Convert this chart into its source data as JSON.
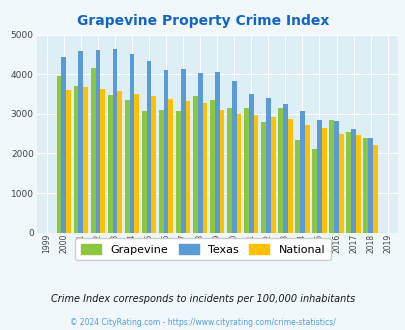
{
  "title": "Grapevine Property Crime Index",
  "years": [
    "1999",
    "2000",
    "2001",
    "2002",
    "2003",
    "2004",
    "2005",
    "2006",
    "2007",
    "2008",
    "2009",
    "2010",
    "2011",
    "2012",
    "2013",
    "2014",
    "2015",
    "2016",
    "2017",
    "2018",
    "2019"
  ],
  "grapevine": [
    null,
    3950,
    3700,
    4150,
    3480,
    3360,
    3060,
    3100,
    3060,
    3460,
    3350,
    3150,
    3150,
    2800,
    3160,
    2350,
    2100,
    2850,
    2550,
    2380,
    null
  ],
  "texas": [
    null,
    4430,
    4590,
    4620,
    4640,
    4520,
    4330,
    4100,
    4120,
    4030,
    4060,
    3820,
    3490,
    3390,
    3260,
    3060,
    2840,
    2820,
    2610,
    2400,
    null
  ],
  "national": [
    null,
    3610,
    3680,
    3640,
    3570,
    3510,
    3450,
    3380,
    3330,
    3280,
    3090,
    2990,
    2960,
    2920,
    2880,
    2730,
    2650,
    2490,
    2470,
    2220,
    null
  ],
  "colors": {
    "grapevine": "#8dc63f",
    "texas": "#5b9bd5",
    "national": "#ffc000"
  },
  "background_color": "#f0f8fc",
  "plot_bg": "#ddeef5",
  "ylim": [
    0,
    5000
  ],
  "yticks": [
    0,
    1000,
    2000,
    3000,
    4000,
    5000
  ],
  "subtitle": "Crime Index corresponds to incidents per 100,000 inhabitants",
  "footer": "© 2024 CityRating.com - https://www.cityrating.com/crime-statistics/",
  "title_color": "#1565c0",
  "subtitle_color": "#1a1a1a",
  "footer_color": "#5b9bd5"
}
